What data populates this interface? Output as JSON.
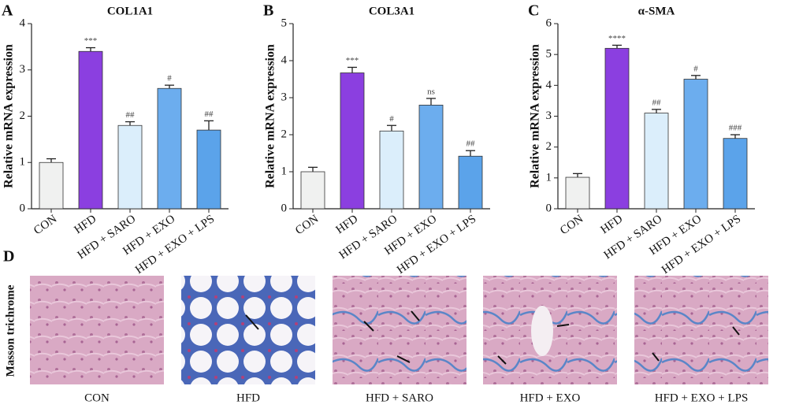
{
  "chart_data": [
    {
      "type": "bar",
      "panel": "A",
      "title": "COL1A1",
      "y_label": "Relative mRNA expression",
      "categories": [
        "CON",
        "HFD",
        "HFD + SARO",
        "HFD + EXO",
        "HFD + EXO + LPS"
      ],
      "values": [
        1.0,
        3.4,
        1.8,
        2.6,
        1.7
      ],
      "errors": [
        0.08,
        0.08,
        0.08,
        0.07,
        0.2
      ],
      "annotations": [
        null,
        "***",
        "##",
        "#",
        "##"
      ],
      "colors": [
        "#f0f1f0",
        "#8b3fe0",
        "#dbeefb",
        "#6cadee",
        "#5ba3ea"
      ],
      "ylim": [
        0,
        4
      ],
      "yticks": [
        0,
        1,
        2,
        3,
        4
      ]
    },
    {
      "type": "bar",
      "panel": "B",
      "title": "COL3A1",
      "y_label": "Relative mRNA expression",
      "categories": [
        "CON",
        "HFD",
        "HFD + SARO",
        "HFD + EXO",
        "HFD + EXO + LPS"
      ],
      "values": [
        1.0,
        3.67,
        2.1,
        2.8,
        1.42
      ],
      "errors": [
        0.12,
        0.15,
        0.15,
        0.18,
        0.15
      ],
      "annotations": [
        null,
        "***",
        "#",
        "ns",
        "##"
      ],
      "colors": [
        "#f0f1f0",
        "#8b3fe0",
        "#dbeefb",
        "#6cadee",
        "#5ba3ea"
      ],
      "ylim": [
        0,
        5
      ],
      "yticks": [
        0,
        1,
        2,
        3,
        4,
        5
      ]
    },
    {
      "type": "bar",
      "panel": "C",
      "title": "α-SMA",
      "y_label": "Relative mRNA expression",
      "categories": [
        "CON",
        "HFD",
        "HFD + SARO",
        "HFD + EXO",
        "HFD + EXO + LPS"
      ],
      "values": [
        1.02,
        5.2,
        3.1,
        4.2,
        2.28
      ],
      "errors": [
        0.12,
        0.1,
        0.12,
        0.12,
        0.12
      ],
      "annotations": [
        null,
        "****",
        "##",
        "#",
        "###"
      ],
      "colors": [
        "#f0f1f0",
        "#8b3fe0",
        "#dbeefb",
        "#6cadee",
        "#5ba3ea"
      ],
      "ylim": [
        0,
        6
      ],
      "yticks": [
        0,
        1,
        2,
        3,
        4,
        5,
        6
      ]
    }
  ],
  "histology": {
    "panel": "D",
    "stain_label": "Masson trichrome",
    "captions": [
      "CON",
      "HFD",
      "HFD + SARO",
      "HFD + EXO",
      "HFD + EXO + LPS"
    ]
  }
}
